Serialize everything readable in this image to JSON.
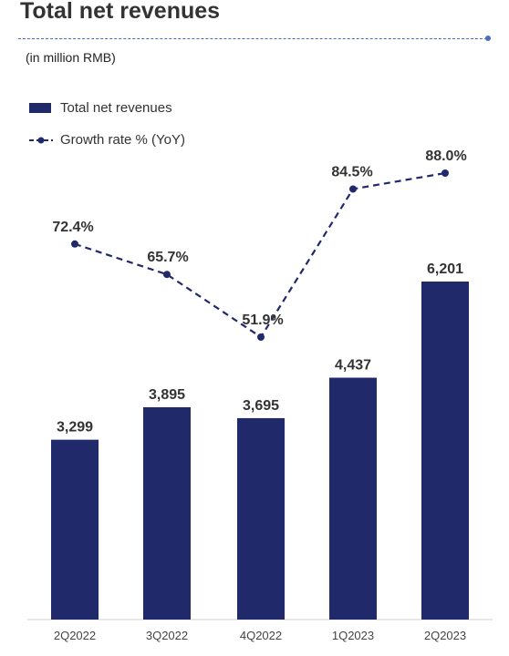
{
  "header": {
    "title": "Total net revenues",
    "subtitle": "(in million RMB)"
  },
  "legend": {
    "bar_label": "Total net revenues",
    "line_label": "Growth rate % (YoY)"
  },
  "colors": {
    "bar": "#202a6b",
    "line": "#202a6b",
    "accent_rule": "#4a6bbf"
  },
  "chart_data": {
    "type": "bar",
    "categories": [
      "2Q2022",
      "3Q2022",
      "4Q2022",
      "1Q2023",
      "2Q2023"
    ],
    "series": [
      {
        "name": "Total net revenues",
        "type": "bar",
        "values": [
          3299,
          3895,
          3695,
          4437,
          6201
        ],
        "labels": [
          "3,299",
          "3,895",
          "3,695",
          "4,437",
          "6,201"
        ]
      },
      {
        "name": "Growth rate % (YoY)",
        "type": "line",
        "style": "dashed",
        "values": [
          72.4,
          65.7,
          51.9,
          84.5,
          88.0
        ],
        "labels": [
          "72.4%",
          "65.7%",
          "51.9%",
          "84.5%",
          "88.0%"
        ]
      }
    ],
    "ylim": [
      0,
      6300
    ],
    "grid": false,
    "legend_position": "top-left"
  }
}
